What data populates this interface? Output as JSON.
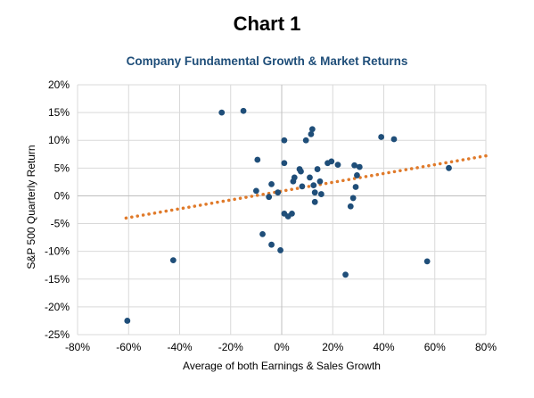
{
  "chart_data": {
    "type": "scatter",
    "title": "Chart 1",
    "subtitle": "Company Fundamental Growth & Market Returns",
    "xlabel": "Average of both Earnings & Sales Growth",
    "ylabel": "S&P 500 Quarterly Return",
    "xlim": [
      -80,
      80
    ],
    "ylim": [
      -25,
      20
    ],
    "x_ticks": [
      -80,
      -60,
      -40,
      -20,
      0,
      20,
      40,
      60,
      80
    ],
    "y_ticks": [
      -25,
      -20,
      -15,
      -10,
      -5,
      0,
      5,
      10,
      15,
      20
    ],
    "x_tick_labels": [
      "-80%",
      "-60%",
      "-40%",
      "-20%",
      "0%",
      "20%",
      "40%",
      "60%",
      "80%"
    ],
    "y_tick_labels": [
      "-25%",
      "-20%",
      "-15%",
      "-10%",
      "-5%",
      "0%",
      "5%",
      "10%",
      "15%",
      "20%"
    ],
    "grid": true,
    "legend": "none",
    "series": [
      {
        "type": "scatter",
        "color": "#1f4e79",
        "points": [
          [
            -60.5,
            -22.5
          ],
          [
            -42.5,
            -11.6
          ],
          [
            -23.5,
            15.0
          ],
          [
            -15.0,
            15.3
          ],
          [
            -10.0,
            0.9
          ],
          [
            -9.5,
            6.5
          ],
          [
            -7.5,
            -6.9
          ],
          [
            -5.0,
            -0.2
          ],
          [
            -4.0,
            2.1
          ],
          [
            -4.0,
            -8.8
          ],
          [
            -1.5,
            0.6
          ],
          [
            -0.5,
            -9.8
          ],
          [
            1.0,
            5.9
          ],
          [
            1.0,
            10.0
          ],
          [
            1.0,
            -3.2
          ],
          [
            2.5,
            -3.7
          ],
          [
            4.0,
            -3.2
          ],
          [
            4.5,
            2.6
          ],
          [
            5.0,
            3.3
          ],
          [
            7.0,
            4.8
          ],
          [
            7.5,
            4.4
          ],
          [
            8.0,
            1.7
          ],
          [
            9.5,
            10.0
          ],
          [
            11.0,
            3.3
          ],
          [
            11.5,
            11.1
          ],
          [
            12.0,
            12.0
          ],
          [
            12.5,
            1.9
          ],
          [
            13.0,
            0.6
          ],
          [
            13.0,
            -1.1
          ],
          [
            14.0,
            4.8
          ],
          [
            15.0,
            2.6
          ],
          [
            15.5,
            0.3
          ],
          [
            18.0,
            5.9
          ],
          [
            19.5,
            6.2
          ],
          [
            22.0,
            5.6
          ],
          [
            25.0,
            -14.2
          ],
          [
            27.0,
            -1.9
          ],
          [
            28.0,
            -0.4
          ],
          [
            28.5,
            5.5
          ],
          [
            29.0,
            1.6
          ],
          [
            29.5,
            3.7
          ],
          [
            30.5,
            5.2
          ],
          [
            39.0,
            10.6
          ],
          [
            44.0,
            10.2
          ],
          [
            57.0,
            -11.8
          ],
          [
            65.5,
            5.0
          ]
        ]
      },
      {
        "type": "trendline",
        "color": "#e07a2a",
        "style": "dotted",
        "x": [
          -61,
          80
        ],
        "y": [
          -4.0,
          7.2
        ]
      }
    ]
  },
  "colors": {
    "title": "#000000",
    "subtitle": "#1f4e79",
    "grid": "#d9d9d9",
    "axis": "#bfbfbf"
  }
}
